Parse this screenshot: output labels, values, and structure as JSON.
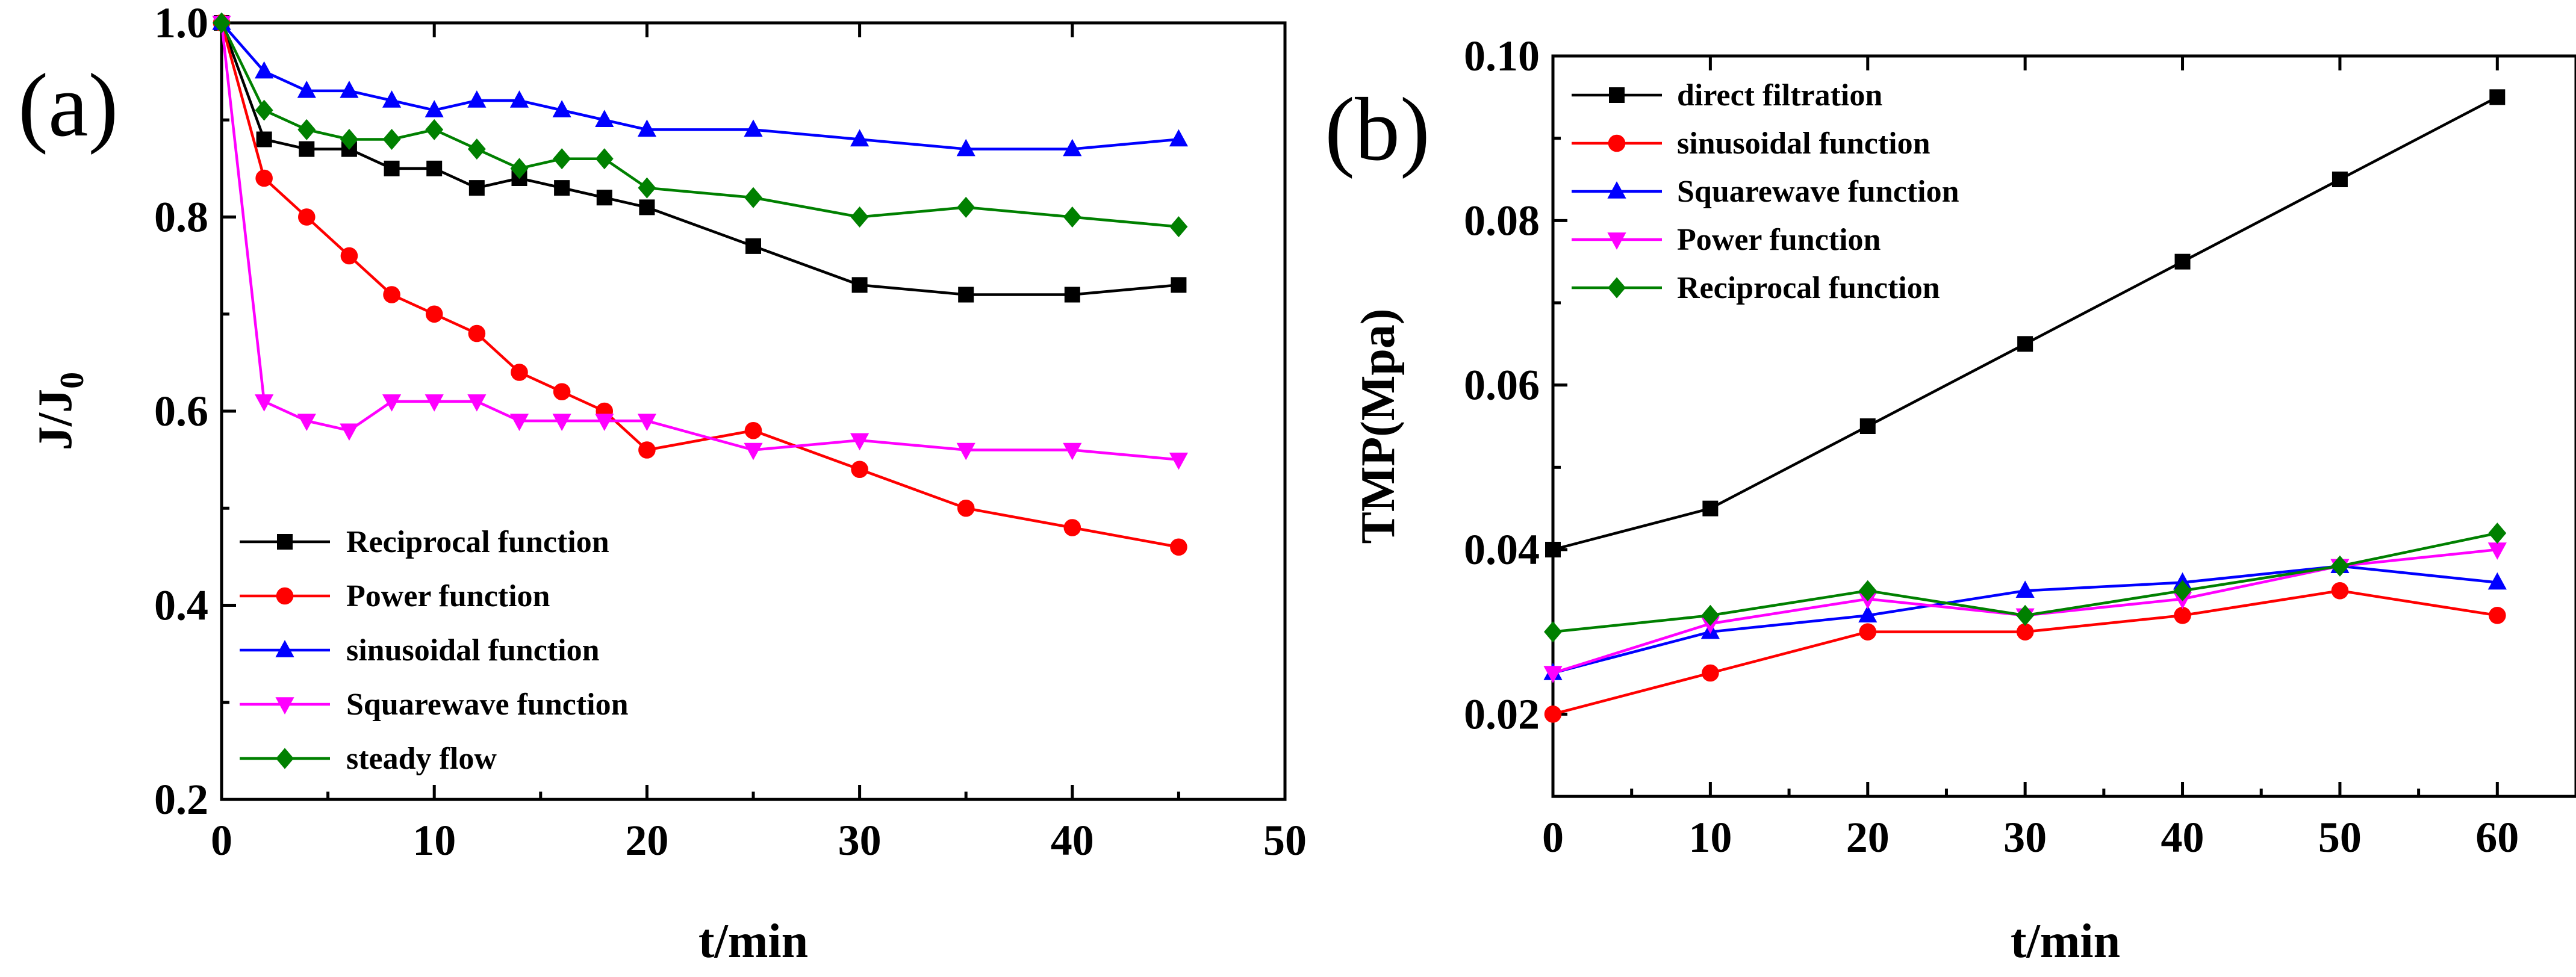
{
  "chart_data": [
    {
      "type": "line",
      "panel_label": "(a)",
      "xlabel": "t/min",
      "ylabel": "J/J",
      "ylabel_sub": "0",
      "xlim": [
        0,
        50
      ],
      "ylim": [
        0.2,
        1.0
      ],
      "xticks": [
        0,
        10,
        20,
        30,
        40,
        50
      ],
      "yticks": [
        0.2,
        0.4,
        0.6,
        0.8,
        1.0
      ],
      "xtick_labels": [
        "0",
        "10",
        "20",
        "30",
        "40",
        "50"
      ],
      "ytick_labels": [
        "0.2",
        "0.4",
        "0.6",
        "0.8",
        "1.0"
      ],
      "legend_position": "bottom-left",
      "series": [
        {
          "name": "Reciprocal function",
          "color": "#000000",
          "marker": "square",
          "x": [
            0,
            2,
            4,
            6,
            8,
            10,
            12,
            14,
            16,
            18,
            20,
            25,
            30,
            35,
            40,
            45
          ],
          "y": [
            1.0,
            0.88,
            0.87,
            0.87,
            0.85,
            0.85,
            0.83,
            0.84,
            0.83,
            0.82,
            0.81,
            0.77,
            0.73,
            0.72,
            0.72,
            0.73
          ]
        },
        {
          "name": "Power function",
          "color": "#ff0000",
          "marker": "circle",
          "x": [
            0,
            2,
            4,
            6,
            8,
            10,
            12,
            14,
            16,
            18,
            20,
            25,
            30,
            35,
            40,
            45
          ],
          "y": [
            1.0,
            0.84,
            0.8,
            0.76,
            0.72,
            0.7,
            0.68,
            0.64,
            0.62,
            0.6,
            0.56,
            0.58,
            0.54,
            0.5,
            0.48,
            0.46
          ]
        },
        {
          "name": "sinusoidal function",
          "color": "#0000ff",
          "marker": "triangle-up",
          "x": [
            0,
            2,
            4,
            6,
            8,
            10,
            12,
            14,
            16,
            18,
            20,
            25,
            30,
            35,
            40,
            45
          ],
          "y": [
            1.0,
            0.95,
            0.93,
            0.93,
            0.92,
            0.91,
            0.92,
            0.92,
            0.91,
            0.9,
            0.89,
            0.89,
            0.88,
            0.87,
            0.87,
            0.88
          ]
        },
        {
          "name": "Squarewave function",
          "color": "#ff00ff",
          "marker": "triangle-down",
          "x": [
            0,
            2,
            4,
            6,
            8,
            10,
            12,
            14,
            16,
            18,
            20,
            25,
            30,
            35,
            40,
            45
          ],
          "y": [
            1.0,
            0.61,
            0.59,
            0.58,
            0.61,
            0.61,
            0.61,
            0.59,
            0.59,
            0.59,
            0.59,
            0.56,
            0.57,
            0.56,
            0.56,
            0.55
          ]
        },
        {
          "name": "steady flow",
          "color": "#008000",
          "marker": "diamond",
          "x": [
            0,
            2,
            4,
            6,
            8,
            10,
            12,
            14,
            16,
            18,
            20,
            25,
            30,
            35,
            40,
            45
          ],
          "y": [
            1.0,
            0.91,
            0.89,
            0.88,
            0.88,
            0.89,
            0.87,
            0.85,
            0.86,
            0.86,
            0.83,
            0.82,
            0.8,
            0.81,
            0.8,
            0.79
          ]
        }
      ]
    },
    {
      "type": "line",
      "panel_label": "(b)",
      "xlabel": "t/min",
      "ylabel": "TMP(Mpa)",
      "xlim": [
        0,
        65
      ],
      "ylim": [
        0.01,
        0.1
      ],
      "xticks": [
        0,
        10,
        20,
        30,
        40,
        50,
        60
      ],
      "yticks": [
        0.02,
        0.04,
        0.06,
        0.08,
        0.1
      ],
      "xtick_labels": [
        "0",
        "10",
        "20",
        "30",
        "40",
        "50",
        "60"
      ],
      "ytick_labels": [
        "0.02",
        "0.04",
        "0.06",
        "0.08",
        "0.10"
      ],
      "legend_position": "top-left",
      "series": [
        {
          "name": "direct filtration",
          "color": "#000000",
          "marker": "square",
          "x": [
            0,
            10,
            20,
            30,
            40,
            50,
            60
          ],
          "y": [
            0.04,
            0.045,
            0.055,
            0.065,
            0.075,
            0.085,
            0.095
          ]
        },
        {
          "name": "sinusoidal function",
          "color": "#ff0000",
          "marker": "circle",
          "x": [
            0,
            10,
            20,
            30,
            40,
            50,
            60
          ],
          "y": [
            0.02,
            0.025,
            0.03,
            0.03,
            0.032,
            0.035,
            0.032
          ]
        },
        {
          "name": "Squarewave function",
          "color": "#0000ff",
          "marker": "triangle-up",
          "x": [
            0,
            10,
            20,
            30,
            40,
            50,
            60
          ],
          "y": [
            0.025,
            0.03,
            0.032,
            0.035,
            0.036,
            0.038,
            0.036
          ]
        },
        {
          "name": "Power function",
          "color": "#ff00ff",
          "marker": "triangle-down",
          "x": [
            0,
            10,
            20,
            30,
            40,
            50,
            60
          ],
          "y": [
            0.025,
            0.031,
            0.034,
            0.032,
            0.034,
            0.038,
            0.04
          ]
        },
        {
          "name": "Reciprocal function",
          "color": "#008000",
          "marker": "diamond",
          "x": [
            0,
            10,
            20,
            30,
            40,
            50,
            60
          ],
          "y": [
            0.03,
            0.032,
            0.035,
            0.032,
            0.035,
            0.038,
            0.042
          ]
        }
      ]
    }
  ]
}
